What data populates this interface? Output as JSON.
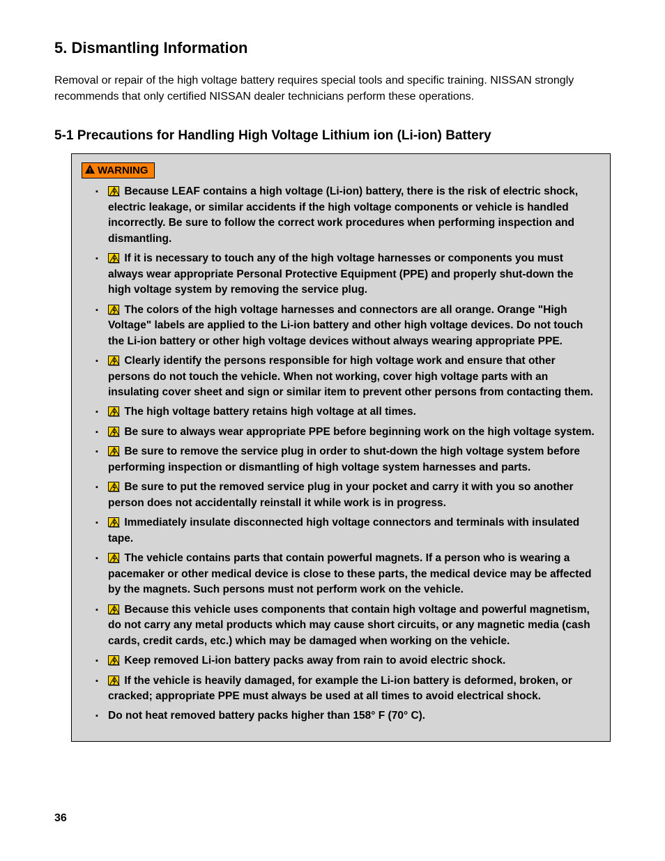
{
  "section": {
    "number": "5.",
    "title": "Dismantling Information",
    "intro": "Removal or repair of the high voltage battery requires special tools and specific training. NISSAN strongly recommends that only certified NISSAN dealer technicians perform these operations."
  },
  "subsection": {
    "number": "5-1",
    "title": "Precautions for Handling High Voltage Lithium ion (Li-ion) Battery"
  },
  "warning": {
    "label": "WARNING",
    "items": [
      {
        "hv": true,
        "text": "Because LEAF contains a high voltage (Li-ion) battery, there is the risk of electric shock, electric leakage, or similar accidents if the high voltage components or vehicle is handled incorrectly. Be sure to follow the correct work procedures when performing inspection and dismantling."
      },
      {
        "hv": true,
        "text": "If it is necessary to touch any of the high voltage harnesses or components you must always wear appropriate Personal Protective Equipment (PPE) and properly shut-down the high voltage system by removing the service plug."
      },
      {
        "hv": true,
        "text": "The colors of the high voltage harnesses and connectors are all orange. Orange \"High Voltage\" labels are applied to the Li-ion battery and other high voltage devices. Do not touch the Li-ion battery or other high voltage devices without always wearing appropriate PPE."
      },
      {
        "hv": true,
        "text": "Clearly identify the persons responsible for high voltage work and ensure that other persons do not touch the vehicle. When not working, cover high voltage parts with an insulating cover sheet and sign or similar item to prevent other persons from contacting them."
      },
      {
        "hv": true,
        "text": "The high voltage battery retains high voltage at all times."
      },
      {
        "hv": true,
        "text": "Be sure to always wear appropriate PPE before beginning work on the high voltage system."
      },
      {
        "hv": true,
        "text": "Be sure to remove the service plug in order to shut-down the high voltage system before performing inspection or dismantling of high voltage system harnesses and parts."
      },
      {
        "hv": true,
        "text": "Be sure to put the removed service plug in your pocket and carry it with you so another person does not accidentally reinstall it while work is in progress."
      },
      {
        "hv": true,
        "text": "Immediately insulate disconnected high voltage connectors and terminals with insulated tape."
      },
      {
        "hv": true,
        "text": "The vehicle contains parts that contain powerful magnets. If a person who is wearing a pacemaker or other medical device is close to these parts, the medical device may be affected by the magnets. Such persons must not perform work on the vehicle."
      },
      {
        "hv": true,
        "text": "Because this vehicle uses components that contain high voltage and powerful magnetism, do not carry any metal products which may cause short circuits, or any magnetic media (cash cards, credit cards, etc.) which may be damaged when working on the vehicle."
      },
      {
        "hv": true,
        "text": "Keep removed Li-ion battery packs away from rain to avoid electric shock."
      },
      {
        "hv": true,
        "text": "If the vehicle is heavily damaged, for example the Li-ion battery is deformed, broken, or cracked; appropriate PPE must always be used at all times to avoid electrical shock."
      },
      {
        "hv": false,
        "text": "Do not heat removed battery packs higher than 158° F (70° C)."
      }
    ]
  },
  "page_number": "36",
  "style": {
    "body_font_size": 16,
    "heading_font_size": 22,
    "subheading_font_size": 19,
    "warning_item_font_size": 15.5,
    "warning_bg": "#d5d5d5",
    "warning_label_bg": "#ff7f00",
    "hv_icon_bg": "#ffd400",
    "text_color": "#000000",
    "page_bg": "#ffffff"
  }
}
